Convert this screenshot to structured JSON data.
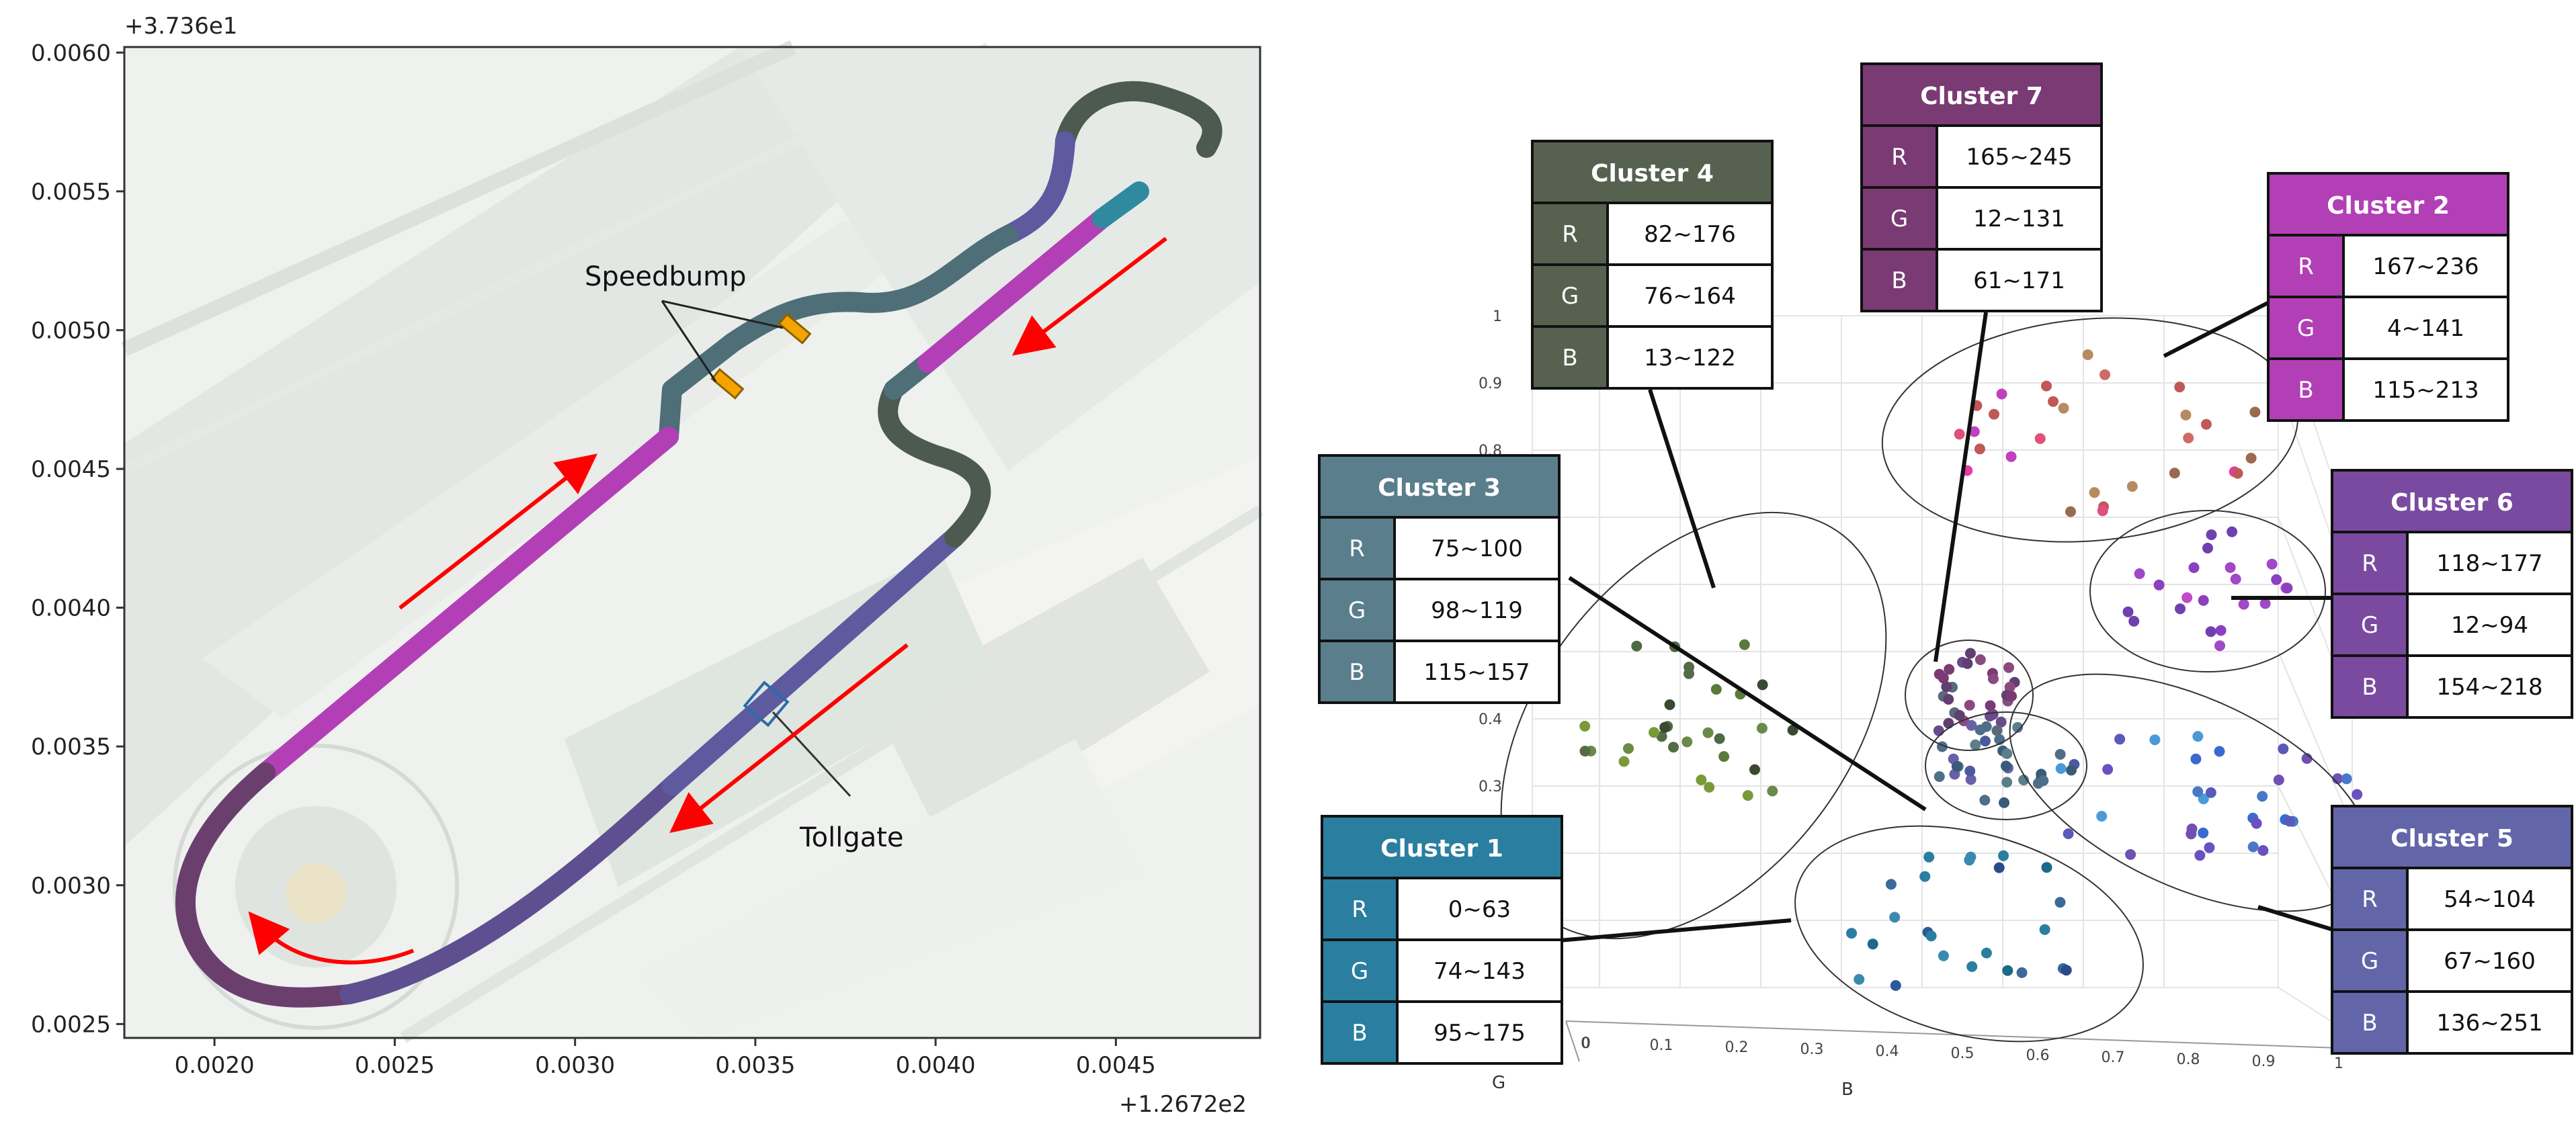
{
  "left_plot": {
    "y_offset_label": "+3.736e1",
    "x_offset_label": "+1.2672e2",
    "x_ticks": [
      "0.0020",
      "0.0025",
      "0.0030",
      "0.0035",
      "0.0040",
      "0.0045"
    ],
    "y_ticks": [
      "0.0060",
      "0.0055",
      "0.0050",
      "0.0045",
      "0.0040",
      "0.0035",
      "0.0030",
      "0.0025"
    ],
    "annotations": {
      "speedbump": "Speedbump",
      "tollgate": "Tollgate"
    },
    "colors": {
      "track_slate": "#4e6e78",
      "track_dark": "#4d5a4f",
      "track_indigo": "#5d5aa0",
      "track_magenta": "#b23fb6",
      "track_plum": "#7a3f7a",
      "track_teal": "#2f8aa0",
      "speedbump": "#f5a300",
      "arrow": "#ff0000"
    }
  },
  "right_plot": {
    "axis_labels": {
      "x": "B",
      "y": "G"
    },
    "x_ticks": [
      "0",
      "0.1",
      "0.2",
      "0.3",
      "0.4",
      "0.5",
      "0.6",
      "0.7",
      "0.8",
      "0.9",
      "1"
    ],
    "y_ticks_visible": [
      "1",
      "0.9",
      "0.8",
      "0.4",
      "0.3"
    ],
    "g_axis_zero": "0"
  },
  "clusters": [
    {
      "name": "Cluster 1",
      "color": "#2a7ea0",
      "R": "0~63",
      "G": "74~143",
      "B": "95~175"
    },
    {
      "name": "Cluster 2",
      "color": "#b23fb6",
      "R": "167~236",
      "G": "4~141",
      "B": "115~213"
    },
    {
      "name": "Cluster 3",
      "color": "#5a7e8c",
      "R": "75~100",
      "G": "98~119",
      "B": "115~157"
    },
    {
      "name": "Cluster 4",
      "color": "#56624f",
      "R": "82~176",
      "G": "76~164",
      "B": "13~122"
    },
    {
      "name": "Cluster 5",
      "color": "#6266a8",
      "R": "54~104",
      "G": "67~160",
      "B": "136~251"
    },
    {
      "name": "Cluster 6",
      "color": "#7a4aa0",
      "R": "118~177",
      "G": "12~94",
      "B": "154~218"
    },
    {
      "name": "Cluster 7",
      "color": "#7a3a74",
      "R": "165~245",
      "G": "12~131",
      "B": "61~171"
    }
  ],
  "row_labels": {
    "r": "R",
    "g": "G",
    "b": "B"
  }
}
